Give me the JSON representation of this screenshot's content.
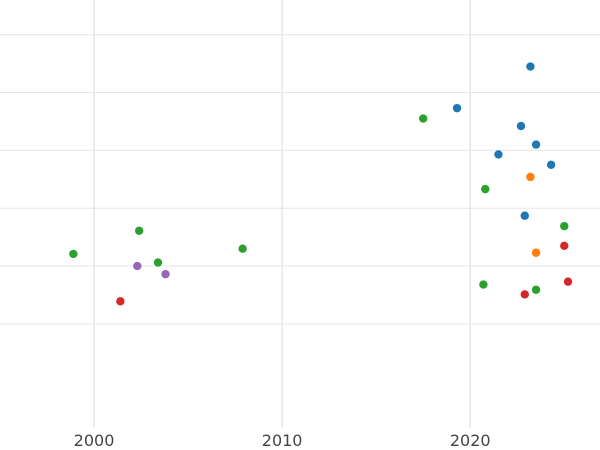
{
  "chart_data": {
    "type": "scatter",
    "title": "",
    "xlabel": "",
    "ylabel": "",
    "xlim": [
      1995.0,
      2026.9
    ],
    "ylim": [
      -2.8,
      4.6
    ],
    "x_ticks": [
      2000,
      2010,
      2020
    ],
    "x_tick_labels": [
      "2000",
      "2010",
      "2020"
    ],
    "y_gridlines": [
      -1,
      0,
      1,
      2,
      3,
      4
    ],
    "grid": true,
    "legend": "none",
    "colors": [
      "#1f77b4",
      "#ff7f0e",
      "#2ca02c",
      "#d62728",
      "#9467bd"
    ],
    "series": [
      {
        "color": "#1f77b4",
        "points": [
          {
            "x": 2023.2,
            "y": 3.45
          },
          {
            "x": 2019.3,
            "y": 2.73
          },
          {
            "x": 2022.7,
            "y": 2.42
          },
          {
            "x": 2023.5,
            "y": 2.1
          },
          {
            "x": 2021.5,
            "y": 1.93
          },
          {
            "x": 2024.3,
            "y": 1.75
          },
          {
            "x": 2022.9,
            "y": 0.87
          }
        ]
      },
      {
        "color": "#ff7f0e",
        "points": [
          {
            "x": 2023.2,
            "y": 1.54
          },
          {
            "x": 2023.5,
            "y": 0.23
          }
        ]
      },
      {
        "color": "#2ca02c",
        "points": [
          {
            "x": 2017.5,
            "y": 2.55
          },
          {
            "x": 2020.8,
            "y": 1.33
          },
          {
            "x": 2025.0,
            "y": 0.69
          },
          {
            "x": 2002.4,
            "y": 0.61
          },
          {
            "x": 1998.9,
            "y": 0.21
          },
          {
            "x": 2007.9,
            "y": 0.3
          },
          {
            "x": 2003.4,
            "y": 0.06
          },
          {
            "x": 2020.7,
            "y": -0.32
          },
          {
            "x": 2023.5,
            "y": -0.41
          }
        ]
      },
      {
        "color": "#d62728",
        "points": [
          {
            "x": 2025.0,
            "y": 0.35
          },
          {
            "x": 2025.2,
            "y": -0.27
          },
          {
            "x": 2022.9,
            "y": -0.49
          },
          {
            "x": 2001.4,
            "y": -0.61
          }
        ]
      },
      {
        "color": "#9467bd",
        "points": [
          {
            "x": 2002.3,
            "y": 0.0
          },
          {
            "x": 2003.8,
            "y": -0.14
          }
        ]
      }
    ]
  }
}
